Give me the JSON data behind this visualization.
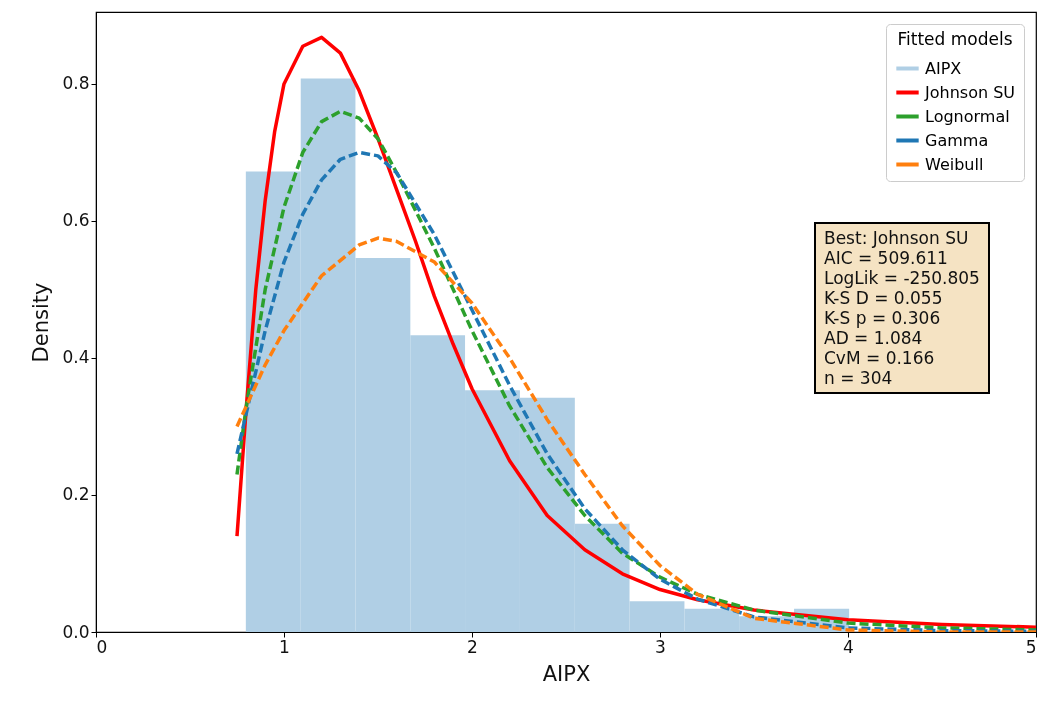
{
  "chart_data": {
    "type": "histogram",
    "xlabel": "AIPX",
    "ylabel": "Density",
    "legend_title": "Fitted models",
    "legend": "top right",
    "grid": false,
    "xlim": [
      0,
      5
    ],
    "xticks": [
      0,
      1,
      2,
      3,
      4,
      5
    ],
    "ylim": [
      0,
      0.905
    ],
    "yticks": [
      {
        "value": 0,
        "label": "0.0"
      },
      {
        "value": 0.2,
        "label": "0.2"
      },
      {
        "value": 0.4,
        "label": "0.4"
      },
      {
        "value": 0.6,
        "label": "0.6"
      },
      {
        "value": 0.8,
        "label": "0.8"
      }
    ],
    "bins": [
      0.797,
      1.089,
      1.38,
      1.672,
      1.963,
      2.255,
      2.547,
      2.838,
      3.13,
      3.421,
      3.713,
      4.006
    ],
    "series": [
      {
        "name": "AIPX",
        "color": "#b0cfe5",
        "values": [
          0.672,
          0.808,
          0.546,
          0.433,
          0.353,
          0.342,
          0.158,
          0.045,
          0.034,
          0.023,
          0.034
        ]
      },
      {
        "name": "Johnson SU",
        "type": "line",
        "line_style": "solid",
        "color": "#ff0000",
        "x": [
          0.75,
          0.8,
          0.85,
          0.9,
          0.95,
          1.0,
          1.1,
          1.2,
          1.3,
          1.4,
          1.5,
          1.6,
          1.7,
          1.8,
          1.9,
          2.0,
          2.2,
          2.4,
          2.6,
          2.8,
          3.0,
          3.2,
          3.5,
          4.0,
          4.5,
          5.0
        ],
        "values": [
          0.14,
          0.33,
          0.5,
          0.63,
          0.73,
          0.8,
          0.855,
          0.868,
          0.845,
          0.79,
          0.72,
          0.645,
          0.57,
          0.49,
          0.42,
          0.355,
          0.25,
          0.17,
          0.12,
          0.085,
          0.062,
          0.047,
          0.032,
          0.018,
          0.011,
          0.007
        ]
      },
      {
        "name": "Lognormal",
        "type": "line",
        "line_style": "dashed",
        "color": "#2ca02c",
        "x": [
          0.75,
          0.8,
          0.9,
          1.0,
          1.1,
          1.2,
          1.3,
          1.4,
          1.5,
          1.6,
          1.8,
          2.0,
          2.2,
          2.4,
          2.6,
          2.8,
          3.0,
          3.2,
          3.5,
          4.0,
          4.5,
          5.0
        ],
        "values": [
          0.23,
          0.33,
          0.5,
          0.62,
          0.7,
          0.745,
          0.76,
          0.75,
          0.72,
          0.67,
          0.56,
          0.44,
          0.33,
          0.24,
          0.17,
          0.115,
          0.08,
          0.055,
          0.032,
          0.013,
          0.006,
          0.003
        ]
      },
      {
        "name": "Gamma",
        "type": "line",
        "line_style": "dashed",
        "color": "#1f77b4",
        "x": [
          0.75,
          0.8,
          0.9,
          1.0,
          1.1,
          1.2,
          1.3,
          1.4,
          1.5,
          1.6,
          1.8,
          2.0,
          2.2,
          2.4,
          2.6,
          2.8,
          3.0,
          3.2,
          3.5,
          4.0,
          4.5,
          5.0
        ],
        "values": [
          0.26,
          0.32,
          0.44,
          0.54,
          0.61,
          0.66,
          0.69,
          0.7,
          0.695,
          0.67,
          0.58,
          0.47,
          0.36,
          0.26,
          0.18,
          0.12,
          0.077,
          0.048,
          0.022,
          0.006,
          0.002,
          0.001
        ]
      },
      {
        "name": "Weibull",
        "type": "line",
        "line_style": "dashed",
        "color": "#ff7f0e",
        "x": [
          0.75,
          0.8,
          0.9,
          1.0,
          1.2,
          1.4,
          1.5,
          1.6,
          1.8,
          2.0,
          2.2,
          2.4,
          2.6,
          2.8,
          3.0,
          3.2,
          3.5,
          4.0,
          4.5,
          5.0
        ],
        "values": [
          0.3,
          0.33,
          0.39,
          0.44,
          0.52,
          0.565,
          0.575,
          0.57,
          0.54,
          0.48,
          0.4,
          0.31,
          0.23,
          0.155,
          0.097,
          0.055,
          0.02,
          0.003,
          0,
          0
        ]
      }
    ],
    "annotations": [
      "Best: Johnson SU",
      "AIC = 509.611",
      "LogLik = -250.805",
      "K-S D = 0.055",
      "K-S p = 0.306",
      "AD = 1.084",
      "CvM = 0.166",
      "n = 304"
    ]
  }
}
